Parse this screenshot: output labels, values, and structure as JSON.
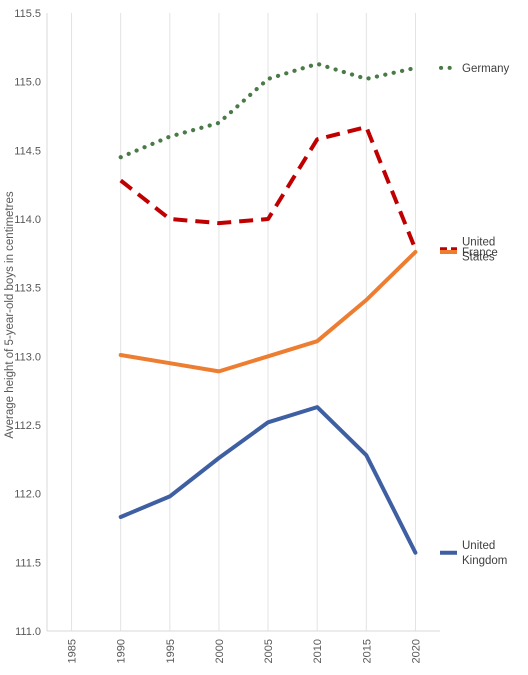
{
  "chart_data": {
    "type": "line",
    "title": "",
    "xlabel": "",
    "ylabel": "Average height of 5-year-old boys in centimetres",
    "x": [
      1985,
      1990,
      1995,
      2000,
      2005,
      2010,
      2015,
      2020
    ],
    "x_tick_labels": [
      "1985",
      "1990",
      "1995",
      "2000",
      "2005",
      "2010",
      "2015",
      "2020"
    ],
    "y_tick_labels": [
      "111.0",
      "111.5",
      "112.0",
      "112.5",
      "113.0",
      "113.5",
      "114.0",
      "114.5",
      "115.0",
      "115.5"
    ],
    "xlim": [
      1982.5,
      2022.5
    ],
    "ylim": [
      111.0,
      115.5
    ],
    "grid": "vertical",
    "legend": "right, at line ends",
    "series": [
      {
        "name": "Germany",
        "label_lines": [
          "Germany"
        ],
        "color": "#4a7a46",
        "style": "dotted",
        "x": [
          1990,
          1995,
          2000,
          2005,
          2010,
          2015,
          2020
        ],
        "values": [
          114.45,
          114.6,
          114.7,
          115.02,
          115.13,
          115.02,
          115.1
        ]
      },
      {
        "name": "United States",
        "label_lines": [
          "United",
          "States"
        ],
        "color": "#c00000",
        "style": "dashed",
        "x": [
          1990,
          1995,
          2000,
          2005,
          2010,
          2015,
          2020
        ],
        "values": [
          114.28,
          114.0,
          113.97,
          114.0,
          114.58,
          114.67,
          113.78
        ]
      },
      {
        "name": "France",
        "label_lines": [
          "France"
        ],
        "color": "#ed7d31",
        "style": "solid",
        "x": [
          1990,
          1995,
          2000,
          2005,
          2010,
          2015,
          2020
        ],
        "values": [
          113.01,
          112.95,
          112.89,
          113.0,
          113.11,
          113.41,
          113.76
        ]
      },
      {
        "name": "United Kingdom",
        "label_lines": [
          "United",
          "Kingdom"
        ],
        "color": "#3f5fa3",
        "style": "solid",
        "x": [
          1990,
          1995,
          2000,
          2005,
          2010,
          2015,
          2020
        ],
        "values": [
          111.83,
          111.98,
          112.26,
          112.52,
          112.63,
          112.28,
          111.57
        ]
      }
    ]
  }
}
